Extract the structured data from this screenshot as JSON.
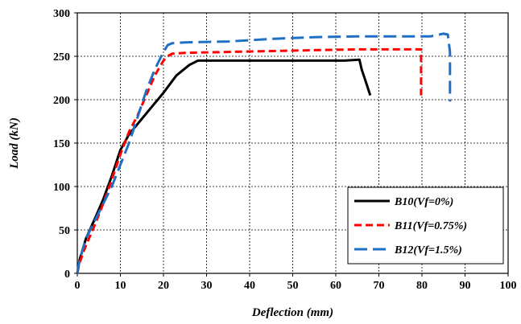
{
  "chart_data": {
    "type": "line",
    "xlabel": "Deflection (mm)",
    "ylabel": "Load (kN)",
    "xlim": [
      0,
      100
    ],
    "ylim": [
      0,
      300
    ],
    "xticks": [
      0,
      10,
      20,
      30,
      40,
      50,
      60,
      70,
      80,
      90,
      100
    ],
    "yticks": [
      0,
      50,
      100,
      150,
      200,
      250,
      300
    ],
    "grid": true,
    "legend_position": "bottom-right",
    "series": [
      {
        "name": "B10(Vf=0%)",
        "color": "#000000",
        "dash": "solid",
        "x": [
          0,
          0.5,
          2,
          4,
          6,
          8,
          10,
          12,
          14,
          17,
          20,
          23,
          26,
          28,
          35,
          45,
          55,
          62,
          65.5,
          66,
          67,
          68
        ],
        "y": [
          0,
          15,
          40,
          62,
          85,
          112,
          142,
          160,
          172,
          190,
          208,
          228,
          240,
          245,
          245,
          245,
          245,
          245,
          246,
          235,
          220,
          205
        ]
      },
      {
        "name": "B11(Vf=0.75%)",
        "color": "#ff0000",
        "dash": "dash",
        "x": [
          0,
          0.5,
          2,
          4,
          6,
          8,
          10,
          12,
          14,
          16,
          18,
          20,
          21,
          22,
          25,
          35,
          45,
          55,
          65,
          75,
          79.8,
          79.8
        ],
        "y": [
          0,
          12,
          32,
          55,
          80,
          108,
          137,
          163,
          182,
          205,
          228,
          245,
          250,
          253,
          254,
          255,
          256,
          257,
          258,
          258,
          258,
          205
        ]
      },
      {
        "name": "B12(Vf=1.5%)",
        "color": "#1f6fc4",
        "dash": "longdash",
        "x": [
          0,
          0.5,
          2,
          4,
          6,
          8,
          10,
          12,
          14,
          16,
          18,
          20,
          21,
          22,
          25,
          35,
          45,
          55,
          65,
          75,
          82,
          85,
          86,
          86.5,
          86.5
        ],
        "y": [
          0,
          15,
          40,
          60,
          80,
          100,
          125,
          150,
          180,
          210,
          235,
          255,
          263,
          265,
          266,
          267,
          270,
          272,
          273,
          273,
          273,
          276,
          275,
          255,
          198
        ]
      }
    ]
  }
}
